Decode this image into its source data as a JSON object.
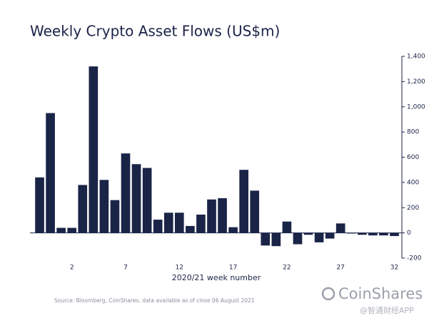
{
  "chart_data": {
    "type": "bar",
    "title": "Weekly Crypto Asset Flows (US$m)",
    "x_label": "2020/21 week number",
    "source": "Source: Bloomberg, CoinShares, data available as of close 06 August 2021",
    "brand": "CoinShares",
    "watermark": "@智通财经APP",
    "categories": [
      null,
      null,
      null,
      "2",
      null,
      null,
      null,
      null,
      "7",
      null,
      null,
      null,
      null,
      "12",
      null,
      null,
      null,
      null,
      "17",
      null,
      null,
      null,
      null,
      "22",
      null,
      null,
      null,
      null,
      "27",
      null,
      null,
      null,
      null,
      "32"
    ],
    "values": [
      440,
      950,
      40,
      40,
      380,
      1320,
      420,
      260,
      630,
      545,
      515,
      105,
      160,
      160,
      55,
      145,
      265,
      275,
      45,
      500,
      335,
      -100,
      -105,
      90,
      -90,
      -15,
      -75,
      -45,
      75,
      -5,
      -15,
      -20,
      -20,
      -25
    ],
    "color": "#1a2447",
    "ylim": [
      -200,
      1400
    ],
    "yticks": [
      {
        "value": -200,
        "label": "-200"
      },
      0,
      200,
      400,
      600,
      800,
      {
        "value": 1000,
        "label": "1,000"
      },
      {
        "value": 1200,
        "label": "1,200"
      },
      {
        "value": 1400,
        "label": "1,400"
      }
    ],
    "axis_side": "right"
  }
}
